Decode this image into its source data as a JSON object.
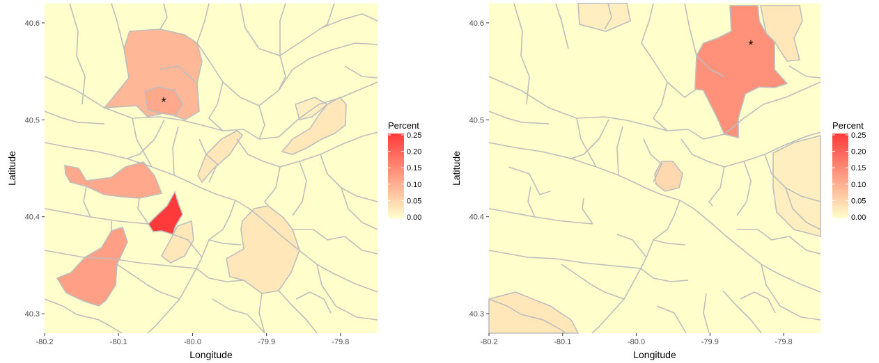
{
  "colors": {
    "panel_background": "#ffffcc",
    "boundary": "#bdbdbd",
    "scale_low": "#ffffcc",
    "scale_high": "#ff3a3a",
    "tick_mark": "#333333",
    "marker": "#000000"
  },
  "legend": {
    "title": "Percent",
    "labels": [
      "0.25",
      "0.20",
      "0.15",
      "0.10",
      "0.05",
      "0.00"
    ]
  },
  "maps": [
    {
      "x_axis_title": "Longitude",
      "y_axis_title": "Latitude",
      "x_ticks": [
        "-80.2",
        "-80.1",
        "-80.0",
        "-79.9",
        "-79.8"
      ],
      "y_ticks": [
        "40.6",
        "40.5",
        "40.4",
        "40.3"
      ],
      "marker_symbol": "*",
      "marker_lonlat": [
        -80.035,
        40.52
      ],
      "shaded_region_percents": [
        0.09,
        0.11,
        0.12,
        0.25,
        0.11,
        0.03,
        0.03,
        0.03,
        0.03,
        0.02
      ]
    },
    {
      "x_axis_title": "Longitude",
      "y_axis_title": "Latitude",
      "x_ticks": [
        "-80.2",
        "-80.1",
        "-80.0",
        "-79.9",
        "-79.8"
      ],
      "y_ticks": [
        "40.6",
        "40.5",
        "40.4",
        "40.3"
      ],
      "marker_symbol": "*",
      "marker_lonlat": [
        -79.843,
        40.578
      ],
      "shaded_region_percents": [
        0.14,
        0.03,
        0.05,
        0.03,
        0.02,
        0.02
      ]
    }
  ]
}
